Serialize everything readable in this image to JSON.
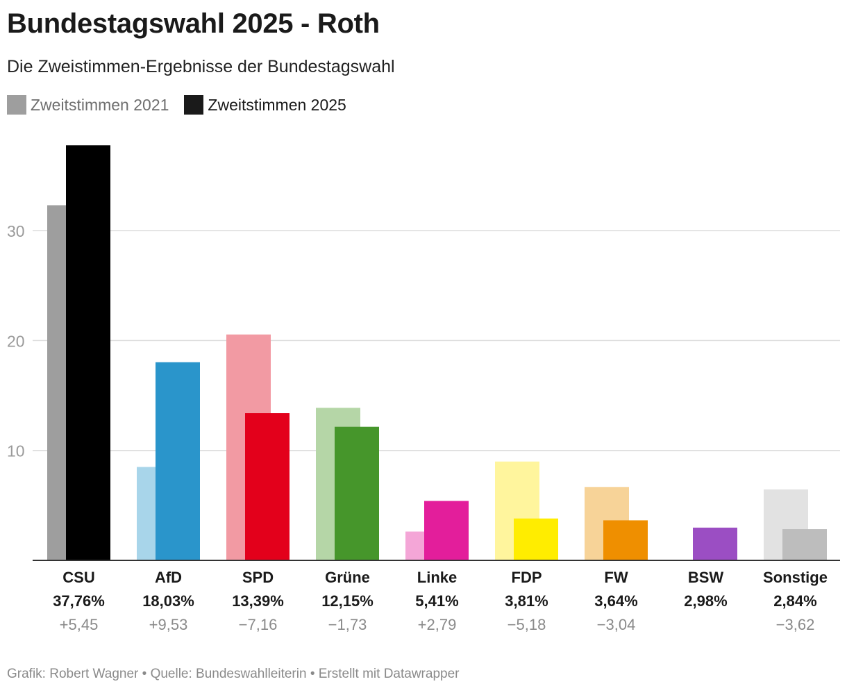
{
  "header": {
    "title": "Bundestagswahl 2025 - Roth",
    "subtitle": "Die Zweistimmen-Ergebnisse der Bundestagswahl"
  },
  "legend": [
    {
      "label": "Zweitstimmen 2021",
      "color": "#9e9e9e"
    },
    {
      "label": "Zweitstimmen 2025",
      "color": "#1a1a1a"
    }
  ],
  "chart_data": {
    "type": "bar",
    "title": "Bundestagswahl 2025 - Roth",
    "subtitle": "Die Zweistimmen-Ergebnisse der Bundestagswahl",
    "xlabel": "",
    "ylabel": "",
    "ylim": [
      0,
      38
    ],
    "yticks": [
      10,
      20,
      30
    ],
    "grid": true,
    "legend_position": "top-left",
    "categories": [
      "CSU",
      "AfD",
      "SPD",
      "Grüne",
      "Linke",
      "FDP",
      "FW",
      "BSW",
      "Sonstige"
    ],
    "series": [
      {
        "name": "Zweitstimmen 2021",
        "values": [
          32.31,
          8.5,
          20.55,
          13.88,
          2.62,
          8.99,
          6.68,
          null,
          6.46
        ]
      },
      {
        "name": "Zweitstimmen 2025",
        "values": [
          37.76,
          18.03,
          13.39,
          12.15,
          5.41,
          3.81,
          3.64,
          2.98,
          2.84
        ]
      }
    ],
    "colors_2021": [
      "#9e9e9e",
      "#a8d5ea",
      "#f29aa3",
      "#b5d6a7",
      "#f4a6d7",
      "#fff59d",
      "#f7d398",
      null,
      "#e2e2e2"
    ],
    "colors_2025": [
      "#000000",
      "#2a95cb",
      "#e3001b",
      "#46962b",
      "#e31e9b",
      "#ffed00",
      "#ef8f00",
      "#9b4ec3",
      "#bdbdbd"
    ],
    "value_labels": [
      "37,76%",
      "18,03%",
      "13,39%",
      "12,15%",
      "5,41%",
      "3,81%",
      "3,64%",
      "2,98%",
      "2,84%"
    ],
    "change_labels": [
      "+5,45",
      "+9,53",
      "−7,16",
      "−1,73",
      "+2,79",
      "−5,18",
      "−3,04",
      "",
      "−3,62"
    ]
  },
  "footer": "Grafik: Robert Wagner • Quelle: Bundeswahlleiterin • Erstellt mit Datawrapper"
}
